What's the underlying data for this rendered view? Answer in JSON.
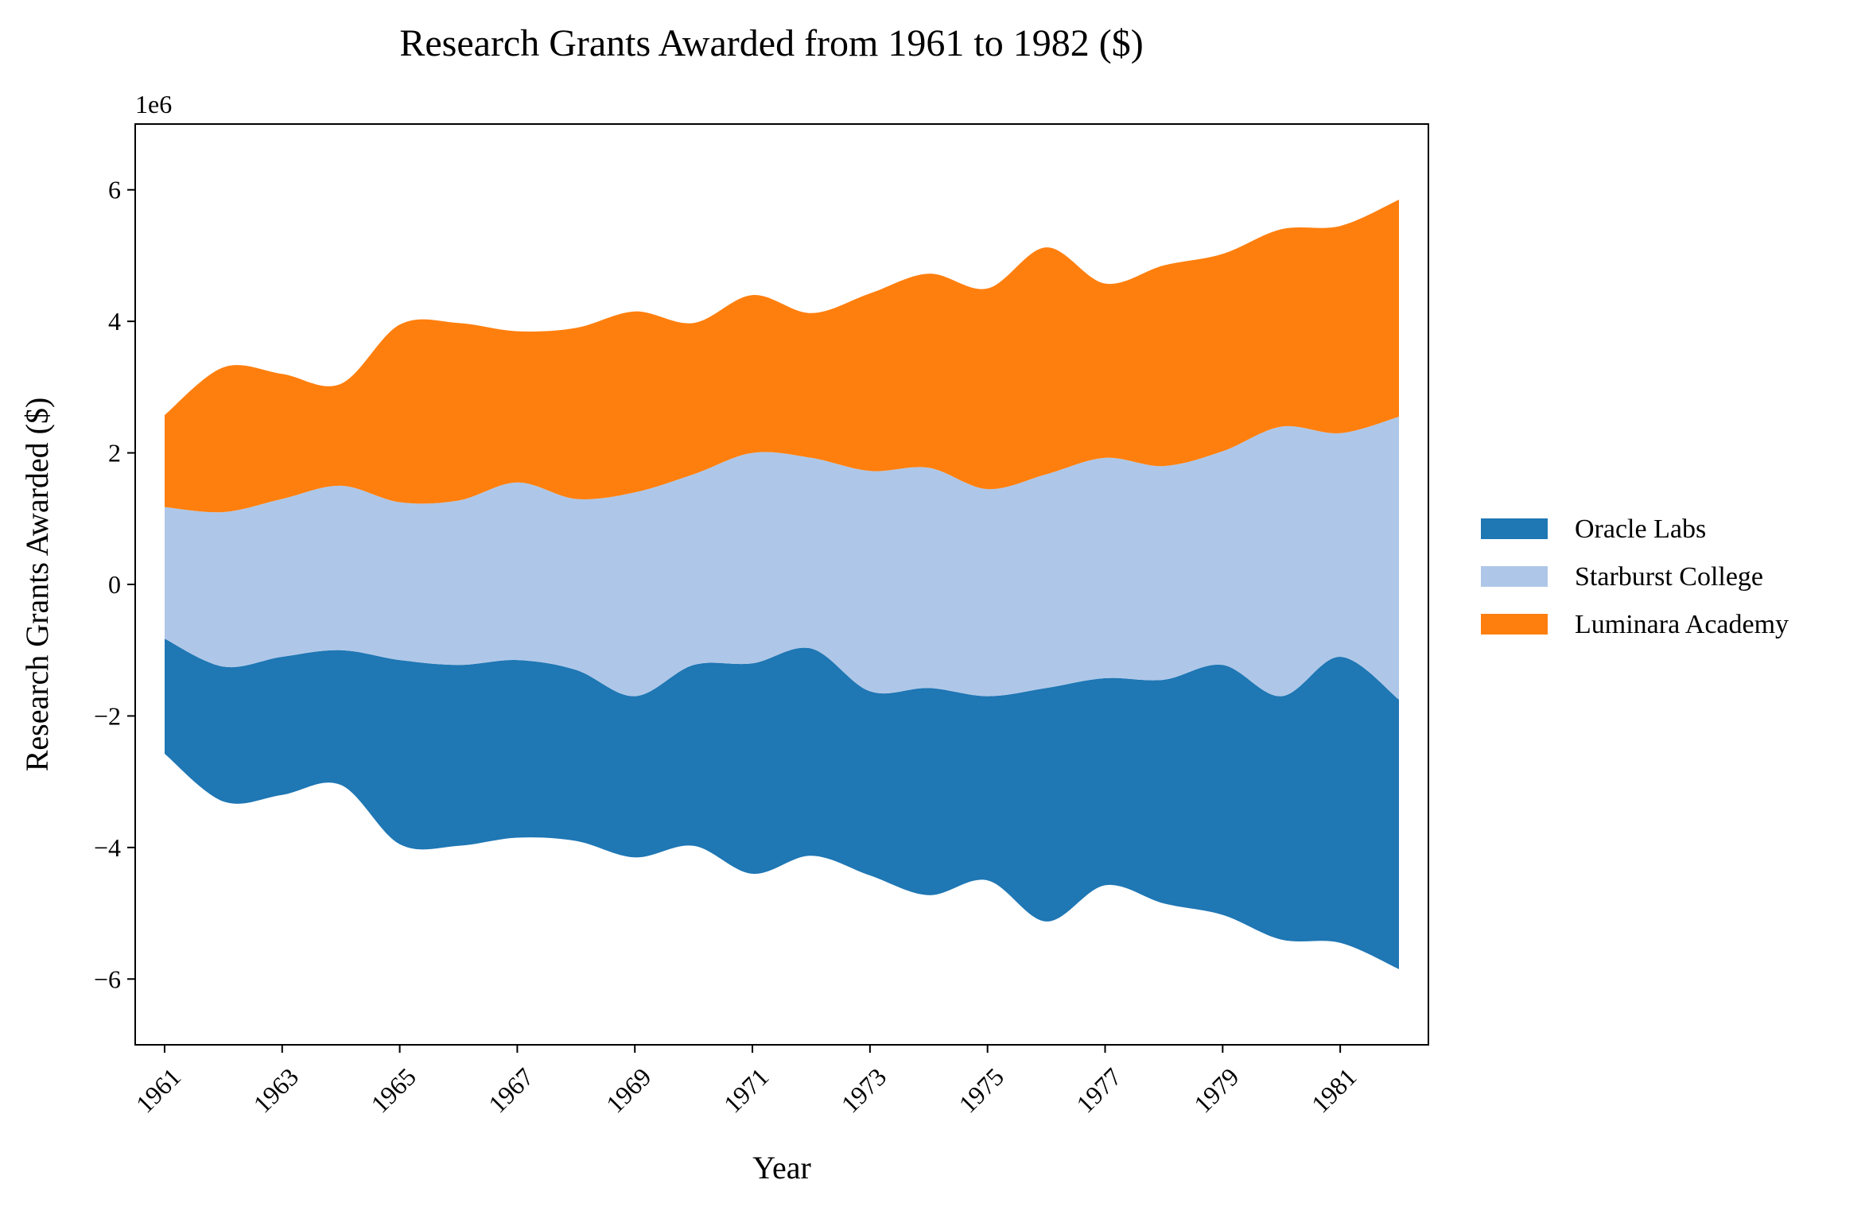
{
  "chart_data": {
    "type": "area",
    "subtype": "streamgraph",
    "title": "Research Grants Awarded from 1961 to 1982 ($)",
    "xlabel": "Year",
    "ylabel": "Research Grants Awarded ($)",
    "y_offset_label": "1e6",
    "ylim": [
      -7000000,
      7000000
    ],
    "xlim": [
      1960.5,
      1982.5
    ],
    "y_ticks": [
      -6000000,
      -4000000,
      -2000000,
      0,
      2000000,
      4000000,
      6000000
    ],
    "y_tick_labels": [
      "−6",
      "−4",
      "−2",
      "0",
      "2",
      "4",
      "6"
    ],
    "x_ticks": [
      1961,
      1963,
      1965,
      1967,
      1969,
      1971,
      1973,
      1975,
      1977,
      1979,
      1981
    ],
    "x_tick_labels": [
      "1961",
      "1963",
      "1965",
      "1967",
      "1969",
      "1971",
      "1973",
      "1975",
      "1977",
      "1979",
      "1981"
    ],
    "grid": false,
    "legend_position": "right",
    "x": [
      1961,
      1962,
      1963,
      1964,
      1965,
      1966,
      1967,
      1968,
      1969,
      1970,
      1971,
      1972,
      1973,
      1974,
      1975,
      1976,
      1977,
      1978,
      1979,
      1980,
      1981,
      1982
    ],
    "series": [
      {
        "name": "Oracle Labs",
        "color": "#1f77b4",
        "values": [
          1750000,
          2050000,
          2100000,
          2050000,
          2800000,
          2750000,
          2700000,
          2600000,
          2450000,
          2750000,
          3200000,
          3150000,
          2800000,
          3150000,
          2800000,
          3550000,
          3150000,
          3400000,
          3800000,
          3700000,
          4350000,
          4100000
        ]
      },
      {
        "name": "Starburst College",
        "color": "#aec7e8",
        "values": [
          2000000,
          2350000,
          2400000,
          2500000,
          2400000,
          2500000,
          2700000,
          2600000,
          3100000,
          2900000,
          3200000,
          2900000,
          3350000,
          3350000,
          3150000,
          3250000,
          3350000,
          3250000,
          3250000,
          4100000,
          3400000,
          4300000
        ]
      },
      {
        "name": "Luminara Academy",
        "color": "#ff7f0e",
        "values": [
          1400000,
          2200000,
          1900000,
          1550000,
          2700000,
          2700000,
          2300000,
          2600000,
          2750000,
          2300000,
          2400000,
          2200000,
          2700000,
          2950000,
          3050000,
          3450000,
          2650000,
          3050000,
          3000000,
          3000000,
          3150000,
          3300000
        ]
      }
    ]
  }
}
